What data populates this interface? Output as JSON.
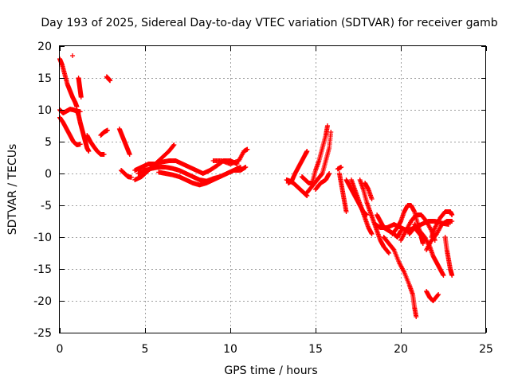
{
  "chart_data": {
    "type": "scatter",
    "title": "Day 193 of 2025, Sidereal Day-to-day VTEC variation (SDTVAR) for receiver gamb",
    "xlabel": "GPS time / hours",
    "ylabel": "SDTVAR / TECUs",
    "xlim": [
      0,
      25
    ],
    "ylim": [
      -25,
      20
    ],
    "xticks": [
      0,
      5,
      10,
      15,
      20,
      25
    ],
    "yticks": [
      20,
      15,
      10,
      5,
      0,
      -5,
      -10,
      -15,
      -20,
      -25
    ],
    "grid": true,
    "marker": "+",
    "color": "#ff0000",
    "series": [
      {
        "name": "SDTVAR",
        "segments": [
          [
            [
              0.0,
              18.0
            ],
            [
              0.15,
              17.0
            ],
            [
              0.3,
              15.5
            ],
            [
              0.45,
              14.0
            ],
            [
              0.6,
              13.0
            ],
            [
              0.75,
              12.0
            ],
            [
              0.9,
              11.2
            ],
            [
              1.0,
              10.5
            ]
          ],
          [
            [
              0.0,
              10.0
            ],
            [
              0.2,
              9.5
            ],
            [
              0.4,
              9.8
            ],
            [
              0.6,
              10.1
            ],
            [
              0.8,
              10.0
            ],
            [
              1.0,
              9.8
            ],
            [
              1.2,
              9.7
            ]
          ],
          [
            [
              0.0,
              8.8
            ],
            [
              0.2,
              8.0
            ],
            [
              0.4,
              7.0
            ],
            [
              0.6,
              6.0
            ],
            [
              0.8,
              5.0
            ],
            [
              1.0,
              4.5
            ],
            [
              1.2,
              4.6
            ]
          ],
          [
            [
              0.75,
              18.5
            ]
          ],
          [
            [
              1.1,
              15.0
            ],
            [
              1.15,
              14.0
            ],
            [
              1.2,
              13.0
            ],
            [
              1.25,
              12.0
            ]
          ],
          [
            [
              1.0,
              10.0
            ],
            [
              1.1,
              9.2
            ],
            [
              1.2,
              8.0
            ],
            [
              1.3,
              7.0
            ],
            [
              1.4,
              6.0
            ],
            [
              1.5,
              5.0
            ],
            [
              1.6,
              4.0
            ],
            [
              1.7,
              3.5
            ]
          ],
          [
            [
              1.6,
              6.0
            ],
            [
              1.8,
              5.0
            ],
            [
              2.0,
              4.2
            ],
            [
              2.2,
              3.5
            ],
            [
              2.4,
              3.0
            ],
            [
              2.6,
              3.0
            ]
          ],
          [
            [
              2.4,
              6.0
            ],
            [
              2.6,
              6.5
            ],
            [
              2.8,
              6.8
            ]
          ],
          [
            [
              2.75,
              15.2
            ],
            [
              2.85,
              14.9
            ],
            [
              2.95,
              14.6
            ]
          ],
          [
            [
              3.5,
              7.0
            ],
            [
              3.65,
              6.0
            ],
            [
              3.8,
              5.0
            ],
            [
              3.95,
              4.0
            ],
            [
              4.1,
              3.0
            ]
          ],
          [
            [
              3.6,
              0.5
            ],
            [
              3.8,
              0.0
            ],
            [
              4.0,
              -0.5
            ],
            [
              4.2,
              -0.6
            ]
          ],
          [
            [
              4.4,
              -1.0
            ],
            [
              4.8,
              -0.5
            ],
            [
              5.2,
              0.5
            ],
            [
              5.6,
              1.5
            ],
            [
              6.0,
              2.5
            ],
            [
              6.4,
              3.5
            ],
            [
              6.7,
              4.5
            ]
          ],
          [
            [
              4.4,
              0.5
            ],
            [
              4.8,
              1.0
            ],
            [
              5.2,
              1.5
            ],
            [
              5.6,
              1.5
            ],
            [
              6.0,
              1.8
            ],
            [
              6.4,
              2.0
            ],
            [
              6.8,
              2.0
            ],
            [
              7.2,
              1.5
            ],
            [
              7.6,
              1.0
            ],
            [
              8.0,
              0.5
            ],
            [
              8.4,
              0.0
            ],
            [
              8.8,
              0.5
            ],
            [
              9.2,
              1.2
            ],
            [
              9.6,
              2.0
            ],
            [
              10.0,
              2.0
            ],
            [
              10.4,
              1.5
            ]
          ],
          [
            [
              4.6,
              0.0
            ],
            [
              5.0,
              0.5
            ],
            [
              5.4,
              0.8
            ],
            [
              5.8,
              1.0
            ],
            [
              6.2,
              1.0
            ],
            [
              6.6,
              0.8
            ],
            [
              7.0,
              0.5
            ],
            [
              7.4,
              0.0
            ],
            [
              7.8,
              -0.5
            ],
            [
              8.2,
              -1.0
            ],
            [
              8.6,
              -1.2
            ],
            [
              9.0,
              -0.8
            ],
            [
              9.4,
              -0.5
            ],
            [
              9.8,
              0.0
            ],
            [
              10.2,
              0.5
            ],
            [
              10.6,
              1.0
            ]
          ],
          [
            [
              5.8,
              0.2
            ],
            [
              6.2,
              0.0
            ],
            [
              6.6,
              -0.2
            ],
            [
              7.0,
              -0.5
            ],
            [
              7.4,
              -1.0
            ],
            [
              7.8,
              -1.5
            ],
            [
              8.2,
              -1.8
            ],
            [
              8.6,
              -1.5
            ],
            [
              9.0,
              -1.0
            ],
            [
              9.4,
              -0.5
            ],
            [
              9.8,
              0.0
            ],
            [
              10.2,
              0.5
            ],
            [
              10.6,
              0.5
            ],
            [
              10.9,
              1.0
            ]
          ],
          [
            [
              9.0,
              2.0
            ],
            [
              9.5,
              2.0
            ],
            [
              10.0,
              1.5
            ],
            [
              10.5,
              2.0
            ],
            [
              10.8,
              3.5
            ],
            [
              11.0,
              3.8
            ]
          ],
          [
            [
              13.3,
              -1.0
            ],
            [
              13.5,
              -1.2
            ],
            [
              13.7,
              -1.5
            ],
            [
              13.9,
              -2.0
            ],
            [
              14.1,
              -2.5
            ],
            [
              14.3,
              -3.0
            ],
            [
              14.5,
              -3.5
            ]
          ],
          [
            [
              13.4,
              -1.5
            ],
            [
              13.6,
              -1.2
            ],
            [
              13.8,
              0.0
            ],
            [
              14.0,
              1.0
            ],
            [
              14.2,
              2.0
            ],
            [
              14.4,
              3.0
            ],
            [
              14.5,
              3.5
            ]
          ],
          [
            [
              14.2,
              -0.5
            ],
            [
              14.4,
              -1.0
            ],
            [
              14.6,
              -1.5
            ],
            [
              14.8,
              -1.5
            ],
            [
              15.0,
              0.5
            ],
            [
              15.2,
              2.0
            ],
            [
              15.4,
              4.0
            ],
            [
              15.6,
              6.0
            ],
            [
              15.7,
              7.5
            ]
          ],
          [
            [
              14.5,
              -3.0
            ],
            [
              14.8,
              -2.0
            ],
            [
              15.1,
              -1.0
            ],
            [
              15.4,
              0.0
            ],
            [
              15.6,
              2.0
            ],
            [
              15.8,
              4.0
            ],
            [
              15.9,
              6.5
            ]
          ],
          [
            [
              15.0,
              -2.5
            ],
            [
              15.3,
              -1.5
            ],
            [
              15.6,
              -1.0
            ],
            [
              15.8,
              0.0
            ]
          ],
          [
            [
              16.3,
              0.7
            ],
            [
              16.5,
              1.0
            ]
          ],
          [
            [
              16.4,
              0.0
            ],
            [
              16.5,
              -1.5
            ],
            [
              16.6,
              -3.0
            ],
            [
              16.7,
              -4.5
            ],
            [
              16.8,
              -6.0
            ]
          ],
          [
            [
              16.8,
              -1.0
            ],
            [
              17.0,
              -2.0
            ],
            [
              17.2,
              -3.0
            ],
            [
              17.4,
              -4.0
            ],
            [
              17.6,
              -5.0
            ],
            [
              17.8,
              -6.0
            ],
            [
              18.0,
              -6.5
            ]
          ],
          [
            [
              17.1,
              -1.0
            ],
            [
              17.3,
              -2.5
            ],
            [
              17.5,
              -4.0
            ],
            [
              17.7,
              -5.5
            ],
            [
              17.9,
              -7.0
            ],
            [
              18.1,
              -8.5
            ],
            [
              18.3,
              -9.5
            ]
          ],
          [
            [
              17.6,
              -1.0
            ],
            [
              17.8,
              -2.5
            ],
            [
              18.0,
              -4.5
            ],
            [
              18.2,
              -6.0
            ],
            [
              18.4,
              -7.5
            ],
            [
              18.6,
              -9.0
            ],
            [
              18.8,
              -10.5
            ],
            [
              19.0,
              -11.5
            ],
            [
              19.3,
              -12.5
            ]
          ],
          [
            [
              17.9,
              -1.5
            ],
            [
              18.1,
              -2.5
            ],
            [
              18.3,
              -4.0
            ]
          ],
          [
            [
              18.6,
              -6.5
            ],
            [
              18.8,
              -7.5
            ],
            [
              19.0,
              -8.5
            ],
            [
              19.3,
              -9.0
            ],
            [
              19.6,
              -9.5
            ],
            [
              19.8,
              -10.0
            ],
            [
              20.0,
              -9.0
            ]
          ],
          [
            [
              18.5,
              -8.0
            ],
            [
              18.8,
              -8.5
            ],
            [
              19.2,
              -8.5
            ],
            [
              19.6,
              -8.0
            ],
            [
              20.0,
              -8.5
            ],
            [
              20.4,
              -9.0
            ],
            [
              20.8,
              -8.5
            ],
            [
              21.2,
              -8.0
            ],
            [
              21.6,
              -7.5
            ],
            [
              22.0,
              -7.5
            ],
            [
              22.4,
              -7.8
            ],
            [
              22.8,
              -8.0
            ]
          ],
          [
            [
              19.0,
              -10.0
            ],
            [
              19.3,
              -11.0
            ],
            [
              19.6,
              -12.0
            ],
            [
              19.9,
              -14.0
            ],
            [
              20.2,
              -15.5
            ],
            [
              20.5,
              -17.5
            ],
            [
              20.7,
              -19.0
            ],
            [
              20.8,
              -21.0
            ],
            [
              20.9,
              -22.5
            ]
          ],
          [
            [
              19.5,
              -9.5
            ],
            [
              19.8,
              -8.5
            ],
            [
              20.0,
              -7.5
            ],
            [
              20.2,
              -6.0
            ],
            [
              20.4,
              -5.0
            ],
            [
              20.6,
              -5.0
            ],
            [
              20.8,
              -6.0
            ],
            [
              21.0,
              -8.0
            ],
            [
              21.2,
              -10.0
            ],
            [
              21.3,
              -11.0
            ]
          ],
          [
            [
              20.0,
              -10.5
            ],
            [
              20.3,
              -9.0
            ],
            [
              20.6,
              -7.5
            ],
            [
              20.9,
              -6.5
            ],
            [
              21.2,
              -6.5
            ],
            [
              21.5,
              -7.5
            ],
            [
              21.8,
              -9.0
            ],
            [
              22.0,
              -10.5
            ]
          ],
          [
            [
              20.8,
              -8.0
            ],
            [
              21.1,
              -9.0
            ],
            [
              21.4,
              -10.0
            ],
            [
              21.7,
              -11.5
            ],
            [
              21.9,
              -13.0
            ],
            [
              22.1,
              -14.0
            ],
            [
              22.3,
              -15.0
            ],
            [
              22.5,
              -16.0
            ]
          ],
          [
            [
              21.5,
              -12.0
            ],
            [
              21.8,
              -10.5
            ],
            [
              22.1,
              -9.5
            ],
            [
              22.4,
              -8.0
            ],
            [
              22.7,
              -7.5
            ],
            [
              23.0,
              -7.5
            ]
          ],
          [
            [
              21.8,
              -10.0
            ],
            [
              22.0,
              -8.5
            ],
            [
              22.3,
              -7.0
            ],
            [
              22.6,
              -6.0
            ],
            [
              22.9,
              -6.0
            ],
            [
              23.0,
              -6.5
            ]
          ],
          [
            [
              22.6,
              -10.0
            ],
            [
              22.7,
              -12.0
            ],
            [
              22.8,
              -13.5
            ],
            [
              22.9,
              -15.0
            ],
            [
              23.0,
              -16.0
            ]
          ],
          [
            [
              21.5,
              -18.5
            ],
            [
              21.7,
              -19.5
            ],
            [
              21.9,
              -20.0
            ],
            [
              22.2,
              -19.0
            ]
          ],
          [
            [
              20.5,
              -9.5
            ],
            [
              20.8,
              -8.5
            ],
            [
              21.1,
              -9.5
            ],
            [
              21.4,
              -10.5
            ]
          ]
        ]
      }
    ]
  }
}
